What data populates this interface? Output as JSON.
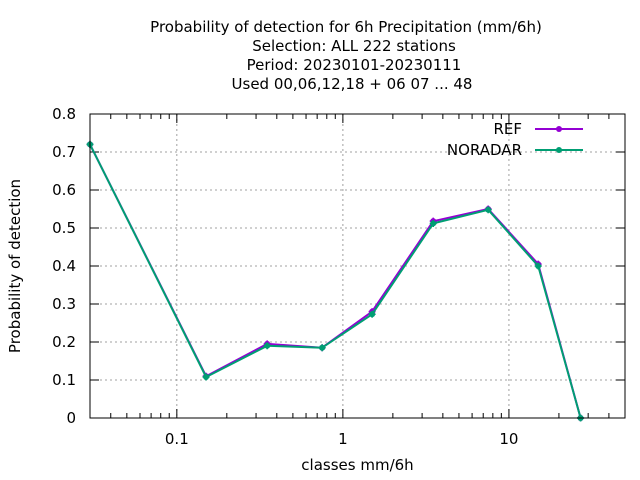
{
  "chart_data": {
    "type": "line",
    "title_lines": [
      "Probability of detection  for 6h Precipitation (mm/6h)",
      "Selection: ALL    222 stations",
      "Period: 20230101-20230111",
      "Used  00,06,12,18 + 06 07 ... 48"
    ],
    "xlabel": "classes mm/6h",
    "ylabel": "Probability of detection",
    "x_scale": "log",
    "xlim": [
      0.03,
      50
    ],
    "ylim": [
      0,
      0.8
    ],
    "x_ticks": [
      0.1,
      1,
      10
    ],
    "x_tick_labels": [
      "0.1",
      "1",
      "10"
    ],
    "y_ticks": [
      0,
      0.1,
      0.2,
      0.3,
      0.4,
      0.5,
      0.6,
      0.7,
      0.8
    ],
    "y_tick_labels": [
      "0",
      "0.1",
      "0.2",
      "0.3",
      "0.4",
      "0.5",
      "0.6",
      "0.7",
      "0.8"
    ],
    "grid": true,
    "legend_position": "top-right",
    "series": [
      {
        "name": "REF",
        "color": "#9400d3",
        "x": [
          0.03,
          0.15,
          0.35,
          0.75,
          1.5,
          3.5,
          7.5,
          15,
          27
        ],
        "y": [
          0.72,
          0.11,
          0.195,
          0.185,
          0.28,
          0.518,
          0.55,
          0.405,
          0.0
        ]
      },
      {
        "name": "NORADAR",
        "color": "#009e73",
        "x": [
          0.03,
          0.15,
          0.35,
          0.75,
          1.5,
          3.5,
          7.5,
          15,
          27
        ],
        "y": [
          0.72,
          0.108,
          0.19,
          0.185,
          0.273,
          0.512,
          0.548,
          0.4,
          0.0
        ]
      }
    ]
  }
}
